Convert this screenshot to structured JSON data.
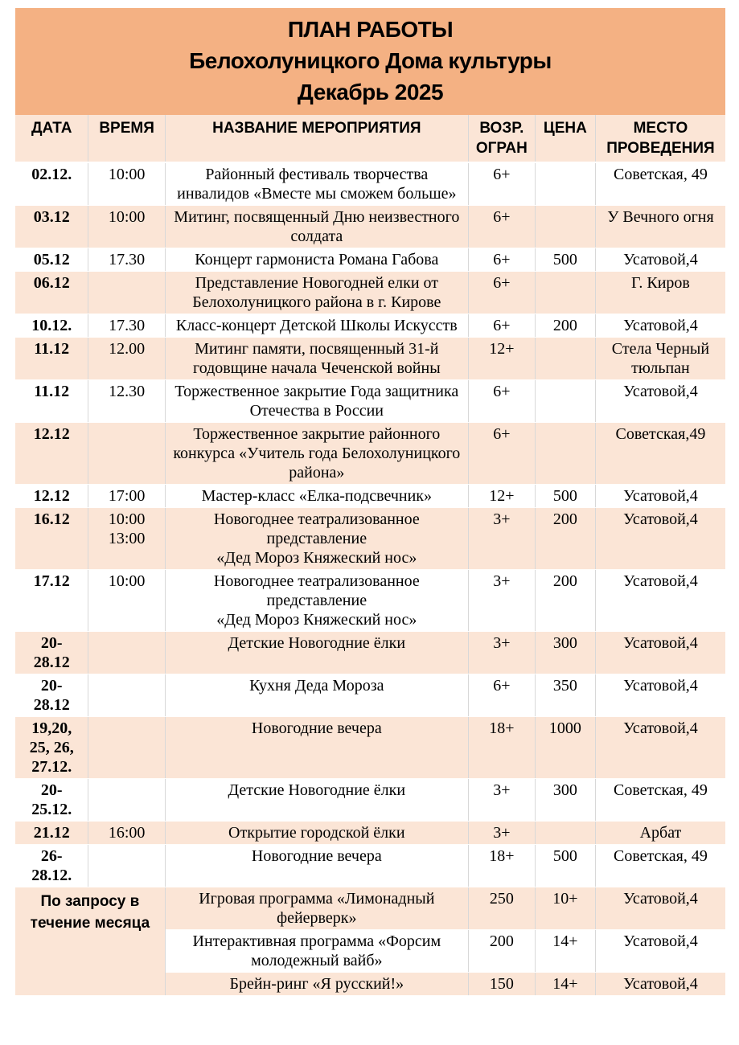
{
  "title": {
    "line1": "ПЛАН РАБОТЫ",
    "line2": "Белохолуницкого Дома культуры",
    "line3": "Декабрь 2025"
  },
  "colors": {
    "title_band": "#F4B183",
    "row_shade": "#FBE5D6",
    "row_plain": "#FFFFFF",
    "grid_line": "#D8D8D8",
    "text": "#000000"
  },
  "table": {
    "headers": {
      "date": "ДАТА",
      "time": "ВРЕМЯ",
      "name": "НАЗВАНИЕ МЕРОПРИЯТИЯ",
      "age": "ВОЗР.\nОГРАН",
      "price": "ЦЕНА",
      "place": "МЕСТО\nПРОВЕДЕНИЯ"
    },
    "rows": [
      {
        "date": "02.12.",
        "time": "10:00",
        "name": "Районный фестиваль творчества инвалидов «Вместе мы сможем больше»",
        "age": "6+",
        "price": "",
        "place": "Советская, 49",
        "shaded": false
      },
      {
        "date": "03.12",
        "time": "10:00",
        "name": "Митинг, посвященный Дню неизвестного солдата",
        "age": "6+",
        "price": "",
        "place": "У Вечного огня",
        "shaded": true
      },
      {
        "date": "05.12",
        "time": "17.30",
        "name": "Концерт гармониста Романа Габова",
        "age": "6+",
        "price": "500",
        "place": "Усатовой,4",
        "shaded": false
      },
      {
        "date": "06.12",
        "time": "",
        "name": "Представление Новогодней елки от Белохолуницкого района в г. Кирове",
        "age": "6+",
        "price": "",
        "place": "Г. Киров",
        "shaded": true
      },
      {
        "date": "10.12.",
        "time": "17.30",
        "name": "Класс-концерт Детской Школы Искусств",
        "age": "6+",
        "price": "200",
        "place": "Усатовой,4",
        "shaded": false
      },
      {
        "date": "11.12",
        "time": "12.00",
        "name": "Митинг памяти, посвященный 31-й годовщине начала Чеченской войны",
        "age": "12+",
        "price": "",
        "place": "Стела Черный тюльпан",
        "shaded": true
      },
      {
        "date": "11.12",
        "time": "12.30",
        "name": "Торжественное закрытие Года защитника Отечества в России",
        "age": "6+",
        "price": "",
        "place": "Усатовой,4",
        "shaded": false
      },
      {
        "date": "12.12",
        "time": "",
        "name": "Торжественное закрытие районного конкурса «Учитель года Белохолуницкого района»",
        "age": "6+",
        "price": "",
        "place": "Советская,49",
        "shaded": true
      },
      {
        "date": "12.12",
        "time": "17:00",
        "name": "Мастер-класс «Елка-подсвечник»",
        "age": "12+",
        "price": "500",
        "place": "Усатовой,4",
        "shaded": false
      },
      {
        "date": "16.12",
        "time": "10:00\n13:00",
        "name": "Новогоднее театрализованное представление\n«Дед Мороз Княжеский нос»",
        "age": "3+",
        "price": "200",
        "place": "Усатовой,4",
        "shaded": true
      },
      {
        "date": "17.12",
        "time": "10:00",
        "name": "Новогоднее театрализованное представление\n«Дед Мороз Княжеский нос»",
        "age": "3+",
        "price": "200",
        "place": "Усатовой,4",
        "shaded": false
      },
      {
        "date": "20-\n28.12",
        "time": "",
        "name": "Детские Новогодние ёлки",
        "age": "3+",
        "price": "300",
        "place": "Усатовой,4",
        "shaded": true
      },
      {
        "date": "20-\n28.12",
        "time": "",
        "name": "Кухня Деда Мороза",
        "age": "6+",
        "price": "350",
        "place": "Усатовой,4",
        "shaded": false
      },
      {
        "date": "19,20,\n25, 26,\n27.12.",
        "time": "",
        "name": "Новогодние вечера",
        "age": "18+",
        "price": "1000",
        "place": "Усатовой,4",
        "shaded": true
      },
      {
        "date": "20-\n25.12.",
        "time": "",
        "name": "Детские Новогодние ёлки",
        "age": "3+",
        "price": "300",
        "place": "Советская, 49",
        "shaded": false
      },
      {
        "date": "21.12",
        "time": "16:00",
        "name": "Открытие городской ёлки",
        "age": "3+",
        "price": "",
        "place": "Арбат",
        "shaded": true
      },
      {
        "date": "26-\n28.12.",
        "time": "",
        "name": "Новогодние вечера",
        "age": "18+",
        "price": "500",
        "place": "Советская, 49",
        "shaded": false
      }
    ],
    "request_section": {
      "label": "По запросу в\nтечение месяца",
      "rows": [
        {
          "name": "Игровая программа «Лимонадный фейерверк»",
          "age": "250",
          "price": "10+",
          "place": "Усатовой,4",
          "shaded": true
        },
        {
          "name": "Интерактивная программа «Форсим молодежный вайб»",
          "age": "200",
          "price": "14+",
          "place": "Усатовой,4",
          "shaded": false
        },
        {
          "name": "Брейн-ринг «Я русский!»",
          "age": "150",
          "price": "14+",
          "place": "Усатовой,4",
          "shaded": true
        }
      ]
    }
  }
}
